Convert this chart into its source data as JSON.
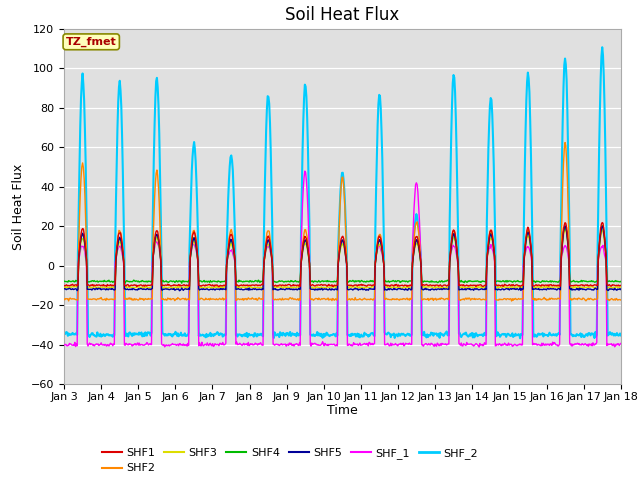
{
  "title": "Soil Heat Flux",
  "xlabel": "Time",
  "ylabel": "Soil Heat Flux",
  "xlim_days": [
    3,
    18
  ],
  "ylim": [
    -60,
    120
  ],
  "yticks": [
    -60,
    -40,
    -20,
    0,
    20,
    40,
    60,
    80,
    100,
    120
  ],
  "xtick_labels": [
    "Jan 3",
    "Jan 4",
    "Jan 5",
    "Jan 6",
    "Jan 7",
    "Jan 8",
    "Jan 9",
    "Jan 10",
    "Jan 11",
    "Jan 12",
    "Jan 13",
    "Jan 14",
    "Jan 15",
    "Jan 16",
    "Jan 17",
    "Jan 18"
  ],
  "series_colors": {
    "SHF1": "#dd0000",
    "SHF2": "#ff8800",
    "SHF3": "#dddd00",
    "SHF4": "#00bb00",
    "SHF5": "#000099",
    "SHF_1": "#ff00ff",
    "SHF_2": "#00ccff"
  },
  "series_lw": {
    "SHF1": 1.0,
    "SHF2": 1.0,
    "SHF3": 1.0,
    "SHF4": 1.0,
    "SHF5": 1.0,
    "SHF_1": 1.0,
    "SHF_2": 1.5
  },
  "annotation_text": "TZ_fmet",
  "annotation_color": "#aa0000",
  "annotation_bg": "#ffffbb",
  "annotation_border": "#888800",
  "background_color": "#e0e0e0",
  "fig_bg": "#ffffff",
  "title_fontsize": 12,
  "label_fontsize": 9,
  "tick_fontsize": 8,
  "legend_fontsize": 8
}
